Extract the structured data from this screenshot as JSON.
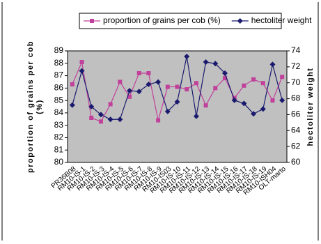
{
  "chart_data": {
    "type": "line",
    "categories": [
      "PR36B08",
      "RM10-IS-1",
      "RM10-IS-2",
      "RM10-IS-3",
      "RM10-IS-4",
      "RM10-IS-5",
      "RM10-IS-6",
      "RM10-IS-7",
      "RM10-IS-8",
      "RM10-IS-9",
      "RM10-IS03",
      "RM10-IS-10",
      "RM10-IS-11",
      "RM10-IS-12",
      "RM10-IS-13",
      "RM10-IS-14",
      "RM10-IS-15",
      "RM10-IS-16",
      "RM10-IS-17",
      "RM10-IS-18",
      "RM10-IS-19",
      "RM10-ISH04",
      "OLT-marto"
    ],
    "series": [
      {
        "name": "proportion of grains per cob (%)",
        "color": "#c0409a",
        "marker": "square",
        "values": [
          86.3,
          88.1,
          83.6,
          83.3,
          84.7,
          86.5,
          85.3,
          87.2,
          87.2,
          83.4,
          86.1,
          86.1,
          85.9,
          86.4,
          84.6,
          86.0,
          86.8,
          85.2,
          86.2,
          86.7,
          86.4,
          85.0,
          86.9
        ]
      },
      {
        "name": "hectoliter weight",
        "color": "#1a1a6e",
        "marker": "diamond",
        "axis": "y2",
        "values": [
          67.2,
          71.5,
          67.0,
          66.0,
          65.4,
          65.4,
          69.0,
          68.9,
          69.8,
          70.1,
          66.4,
          67.6,
          73.3,
          65.8,
          72.6,
          72.4,
          71.2,
          67.8,
          67.4,
          66.1,
          66.7,
          72.3,
          67.8
        ]
      }
    ],
    "ylabel": [
      "proportion of grains per cob",
      "(%)"
    ],
    "y2label": "hectoliter weight",
    "ylim": [
      80,
      89
    ],
    "yticks": [
      80,
      81,
      82,
      83,
      84,
      85,
      86,
      87,
      88,
      89
    ],
    "y2lim": [
      60,
      74
    ],
    "y2ticks": [
      60,
      62,
      64,
      66,
      68,
      70,
      72,
      74
    ],
    "legend": "top",
    "background": "#c0c0c0"
  }
}
